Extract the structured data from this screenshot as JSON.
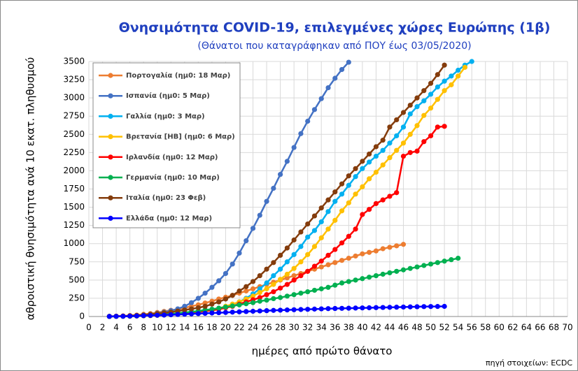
{
  "chart_data": {
    "type": "line",
    "title": "Θνησιμότητα COVID-19, επιλεγμένες χώρες Ευρώπης (1β)",
    "subtitle": "(Θάνατοι που καταγράφηκαν από ΠΟΥ έως 03/05/2020)",
    "x_label": "ημέρες από πρώτο θάνατο",
    "y_label": "αθροιστική θνησιμότητα ανά 10 εκατ. πληθυσμού",
    "source": "πηγή στοιχείων: ECDC",
    "xlim": [
      0,
      70
    ],
    "xticks": [
      0,
      2,
      4,
      6,
      8,
      10,
      12,
      14,
      16,
      18,
      20,
      22,
      24,
      26,
      28,
      30,
      32,
      34,
      36,
      38,
      40,
      42,
      44,
      46,
      48,
      50,
      52,
      54,
      56,
      58,
      60,
      62,
      64,
      66,
      68,
      70
    ],
    "ylim": [
      0,
      3500
    ],
    "yticks": [
      0,
      250,
      500,
      750,
      1000,
      1250,
      1500,
      1750,
      2000,
      2250,
      2500,
      2750,
      3000,
      3250,
      3500
    ],
    "grid": true,
    "legend": "upper left",
    "x": [
      3,
      4,
      5,
      6,
      7,
      8,
      9,
      10,
      11,
      12,
      13,
      14,
      15,
      16,
      17,
      18,
      19,
      20,
      21,
      22,
      23,
      24,
      25,
      26,
      27,
      28,
      29,
      30,
      31,
      32,
      33,
      34,
      35,
      36,
      37,
      38,
      39,
      40,
      41,
      42,
      43,
      44,
      45,
      46,
      47,
      48,
      49,
      50,
      51,
      52,
      53,
      54,
      55,
      56
    ],
    "series": [
      {
        "name": "Πορτογαλία (ημ0: 18 Μαρ)",
        "color": "#ed7d31",
        "values": [
          1,
          3,
          8,
          14,
          20,
          30,
          40,
          55,
          70,
          85,
          100,
          120,
          140,
          160,
          185,
          210,
          240,
          265,
          290,
          320,
          350,
          380,
          410,
          440,
          470,
          500,
          530,
          560,
          590,
          620,
          650,
          680,
          710,
          740,
          770,
          800,
          830,
          860,
          880,
          900,
          930,
          950,
          970,
          990,
          null,
          null,
          null,
          null,
          null,
          null,
          null,
          null,
          null,
          null
        ]
      },
      {
        "name": "Ισπανία (ημ0: 5 Μαρ)",
        "color": "#4472c4",
        "values": [
          1,
          2,
          4,
          8,
          14,
          22,
          32,
          45,
          60,
          80,
          105,
          140,
          190,
          250,
          320,
          400,
          490,
          590,
          720,
          870,
          1040,
          1210,
          1390,
          1580,
          1760,
          1950,
          2130,
          2320,
          2510,
          2680,
          2840,
          2990,
          3140,
          3270,
          3390,
          3490,
          null,
          null,
          null,
          null,
          null,
          null,
          null,
          null,
          null,
          null,
          null,
          null,
          null,
          null,
          null,
          null,
          null,
          null
        ]
      },
      {
        "name": "Γαλλία (ημ0: 3 Μαρ)",
        "color": "#00b0f0",
        "values": [
          1,
          2,
          3,
          5,
          7,
          10,
          14,
          18,
          22,
          28,
          35,
          45,
          55,
          65,
          75,
          90,
          110,
          130,
          160,
          200,
          250,
          310,
          380,
          460,
          560,
          650,
          750,
          850,
          960,
          1090,
          1180,
          1300,
          1440,
          1580,
          1680,
          1800,
          1920,
          2030,
          2120,
          2200,
          2280,
          2380,
          2480,
          2600,
          2780,
          2880,
          2960,
          3050,
          3150,
          3230,
          3300,
          3380,
          3450,
          3500
        ]
      },
      {
        "name": "Βρετανία [ΗΒ] (ημ0: 6 Μαρ)",
        "color": "#ffc000",
        "values": [
          0,
          1,
          2,
          3,
          5,
          8,
          10,
          15,
          20,
          25,
          32,
          40,
          50,
          60,
          75,
          90,
          110,
          140,
          170,
          200,
          240,
          280,
          330,
          380,
          440,
          510,
          580,
          660,
          750,
          850,
          960,
          1080,
          1200,
          1320,
          1450,
          1560,
          1680,
          1780,
          1890,
          1980,
          2080,
          2180,
          2280,
          2380,
          2500,
          2620,
          2760,
          2860,
          2980,
          3100,
          3180,
          3300,
          3420,
          null
        ]
      },
      {
        "name": "Ιρλανδία (ημ0: 12 Μαρ)",
        "color": "#ff0000",
        "values": [
          2,
          4,
          6,
          8,
          10,
          14,
          18,
          22,
          28,
          35,
          42,
          50,
          58,
          66,
          75,
          85,
          100,
          120,
          140,
          170,
          200,
          230,
          260,
          300,
          340,
          390,
          440,
          500,
          560,
          620,
          690,
          760,
          840,
          920,
          1010,
          1100,
          1200,
          1400,
          1470,
          1550,
          1600,
          1650,
          1700,
          2200,
          2250,
          2270,
          2400,
          2480,
          2600,
          2610,
          null,
          null,
          null,
          null
        ]
      },
      {
        "name": "Γερμανία (ημ0: 10 Μαρ)",
        "color": "#00b050",
        "values": [
          1,
          2,
          3,
          5,
          8,
          12,
          16,
          22,
          28,
          35,
          45,
          55,
          65,
          75,
          90,
          100,
          115,
          130,
          145,
          160,
          175,
          190,
          210,
          225,
          245,
          260,
          280,
          300,
          320,
          340,
          360,
          380,
          400,
          430,
          460,
          480,
          500,
          520,
          540,
          560,
          580,
          600,
          620,
          640,
          660,
          680,
          700,
          720,
          740,
          760,
          780,
          800,
          null,
          null
        ]
      },
      {
        "name": "Ιταλία (ημ0: 23 Φεβ)",
        "color": "#843c0c",
        "values": [
          2,
          4,
          6,
          10,
          15,
          20,
          30,
          40,
          50,
          60,
          75,
          90,
          105,
          120,
          140,
          170,
          200,
          240,
          290,
          350,
          410,
          480,
          560,
          650,
          740,
          840,
          940,
          1050,
          1160,
          1270,
          1380,
          1490,
          1600,
          1710,
          1820,
          1930,
          2030,
          2130,
          2230,
          2330,
          2420,
          2600,
          2700,
          2800,
          2900,
          3000,
          3100,
          3200,
          3320,
          3450,
          null,
          null,
          null,
          null
        ]
      },
      {
        "name": "Ελλάδα (ημ0: 12 Μαρ)",
        "color": "#0000ff",
        "values": [
          1,
          2,
          3,
          5,
          8,
          11,
          14,
          17,
          20,
          24,
          28,
          32,
          36,
          40,
          44,
          48,
          52,
          56,
          60,
          64,
          68,
          72,
          76,
          80,
          84,
          87,
          90,
          93,
          96,
          99,
          102,
          105,
          108,
          110,
          112,
          114,
          116,
          118,
          120,
          122,
          124,
          126,
          128,
          130,
          132,
          134,
          136,
          137,
          138,
          139,
          null,
          null,
          null,
          null
        ]
      }
    ]
  }
}
